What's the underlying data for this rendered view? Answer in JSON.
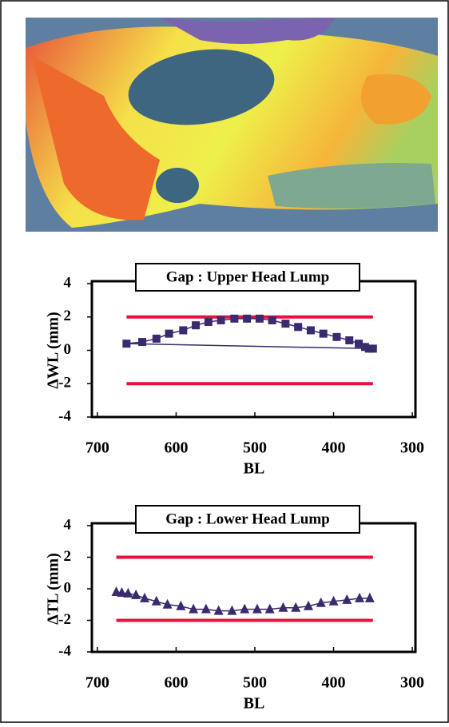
{
  "chart_data": [
    {
      "type": "line",
      "title": "Gap : Upper Head Lump",
      "x_label": "BL",
      "y_label": "ΔWL (mm)",
      "xlim": [
        707,
        296
      ],
      "ylim": [
        -4,
        4
      ],
      "xticks": [
        700,
        600,
        500,
        400,
        300
      ],
      "yticks": [
        -4,
        -2,
        0,
        2,
        4
      ],
      "marker": "square",
      "closed": true,
      "series": [
        {
          "color": "#3a2a6e",
          "x": [
            663,
            643,
            625,
            609,
            591,
            575,
            559,
            543,
            526,
            510,
            494,
            478,
            461,
            445,
            429,
            413,
            396,
            380,
            368,
            360,
            355,
            350
          ],
          "values": [
            0.4,
            0.5,
            0.7,
            1.0,
            1.2,
            1.5,
            1.7,
            1.8,
            1.9,
            1.9,
            1.9,
            1.8,
            1.6,
            1.4,
            1.2,
            1.0,
            0.8,
            0.6,
            0.4,
            0.2,
            0.1,
            0.1
          ]
        }
      ],
      "limit_lines": {
        "values": [
          2,
          -2
        ],
        "x": [
          663,
          350
        ],
        "color": "#e8103c"
      }
    },
    {
      "type": "line",
      "title": "Gap : Lower Head Lump",
      "x_label": "BL",
      "y_label": "ΔTL (mm)",
      "xlim": [
        707,
        296
      ],
      "ylim": [
        -4,
        4
      ],
      "xticks": [
        700,
        600,
        500,
        400,
        300
      ],
      "yticks": [
        -4,
        -2,
        0,
        2,
        4
      ],
      "marker": "triangle",
      "closed": false,
      "series": [
        {
          "color": "#3a2a6e",
          "x": [
            676,
            669,
            661,
            651,
            640,
            625,
            611,
            594,
            578,
            562,
            546,
            529,
            513,
            497,
            481,
            464,
            448,
            432,
            416,
            400,
            383,
            367,
            354
          ],
          "values": [
            -0.2,
            -0.25,
            -0.3,
            -0.4,
            -0.6,
            -0.8,
            -1.0,
            -1.1,
            -1.3,
            -1.3,
            -1.4,
            -1.4,
            -1.3,
            -1.3,
            -1.3,
            -1.2,
            -1.2,
            -1.1,
            -0.9,
            -0.8,
            -0.7,
            -0.6,
            -0.6
          ]
        }
      ],
      "limit_lines": {
        "values": [
          2,
          -2
        ],
        "x": [
          676,
          350
        ],
        "color": "#e8103c"
      }
    }
  ]
}
